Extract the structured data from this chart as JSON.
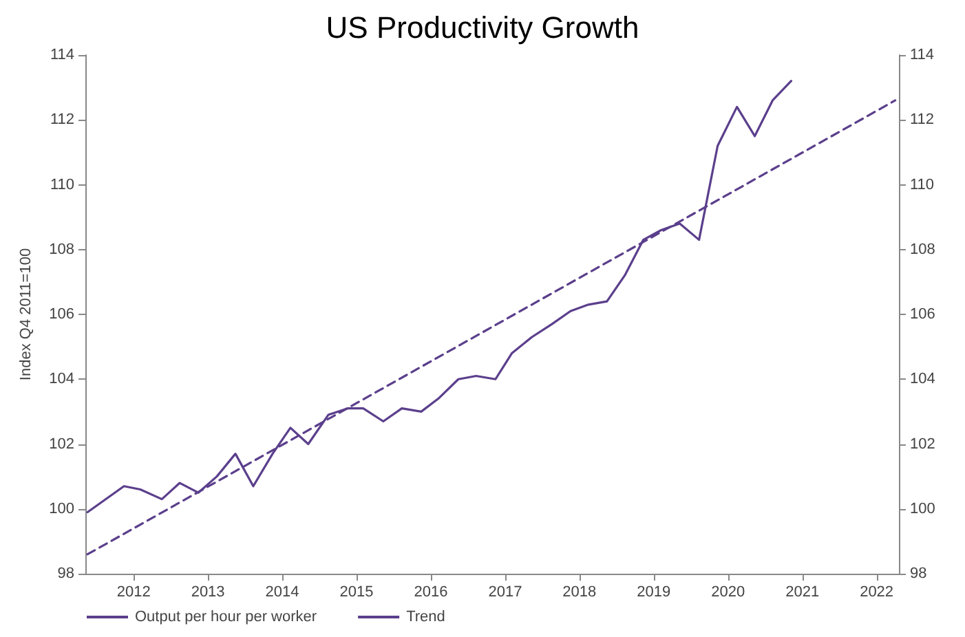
{
  "chart_data": {
    "type": "line",
    "title": "US Productivity Growth",
    "ylabel": "Index Q4 2011=100",
    "xlim": [
      2011.85,
      2022.8
    ],
    "xticks": [
      {
        "value": 2012.5,
        "label": "2012"
      },
      {
        "value": 2013.5,
        "label": "2013"
      },
      {
        "value": 2014.5,
        "label": "2014"
      },
      {
        "value": 2015.5,
        "label": "2015"
      },
      {
        "value": 2016.5,
        "label": "2016"
      },
      {
        "value": 2017.5,
        "label": "2017"
      },
      {
        "value": 2018.5,
        "label": "2018"
      },
      {
        "value": 2019.5,
        "label": "2019"
      },
      {
        "value": 2020.5,
        "label": "2020"
      },
      {
        "value": 2021.5,
        "label": "2021"
      },
      {
        "value": 2022.5,
        "label": "2022"
      }
    ],
    "ylim": [
      98,
      114
    ],
    "yticks": [
      98,
      100,
      102,
      104,
      106,
      108,
      110,
      112,
      114
    ],
    "y2lim": [
      98,
      114
    ],
    "y2ticks": [
      98,
      100,
      102,
      104,
      106,
      108,
      110,
      112,
      114
    ],
    "grid": false,
    "legend": "bottom left",
    "marker": "none",
    "series": [
      {
        "name": "Output per hour per worker",
        "color": "#5b3f8c",
        "line_style": "solid",
        "x": [
          2011.88,
          2012.37,
          2012.59,
          2012.88,
          2013.12,
          2013.37,
          2013.62,
          2013.87,
          2014.11,
          2014.37,
          2014.61,
          2014.85,
          2015.12,
          2015.38,
          2015.59,
          2015.86,
          2016.11,
          2016.37,
          2016.6,
          2016.87,
          2017.11,
          2017.37,
          2017.59,
          2017.86,
          2018.13,
          2018.38,
          2018.62,
          2018.87,
          2019.11,
          2019.36,
          2019.6,
          2019.85,
          2020.11,
          2020.36,
          2020.62,
          2020.86,
          2021.1,
          2021.35
        ],
        "values": [
          99.9,
          100.7,
          100.6,
          100.3,
          100.8,
          100.5,
          101,
          101.7,
          100.7,
          101.7,
          102.5,
          102,
          102.9,
          103.1,
          103.1,
          102.7,
          103.1,
          103,
          103.4,
          104,
          104.1,
          104,
          104.8,
          105.3,
          105.7,
          106.1,
          106.3,
          106.4,
          107.2,
          108.3,
          108.6,
          108.8,
          108.3,
          111.2,
          112.4,
          111.5,
          112.6,
          113.2
        ]
      },
      {
        "name": "Trend",
        "color": "#5b3f8c",
        "line_style": "dashed",
        "x": [
          2011.88,
          2022.75
        ],
        "values": [
          98.6,
          112.6
        ]
      }
    ]
  }
}
